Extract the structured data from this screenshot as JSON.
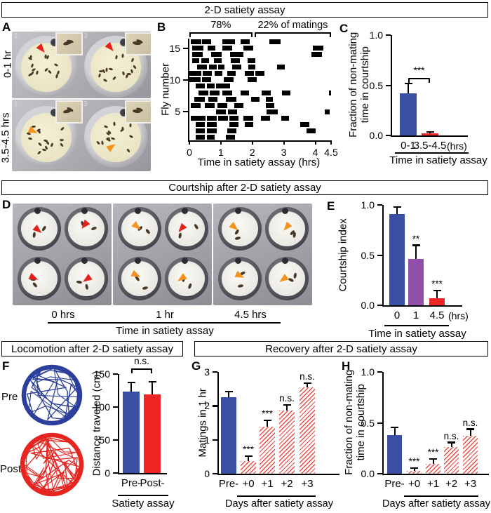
{
  "sections": {
    "top": "2-D satiety assay",
    "middle": "Courtship after 2-D satiety assay",
    "bottom_left": "Locomotion after 2-D satiety assay",
    "bottom_right": "Recovery after 2-D satiety assay"
  },
  "figure": {
    "panels": {
      "a": "A",
      "b": "B",
      "c": "C",
      "d": "D",
      "e": "E",
      "f": "F",
      "g": "G",
      "h": "H"
    }
  },
  "colors": {
    "blue": "#3a4fa4",
    "red": "#ed2524",
    "purple": "#9050a8",
    "arrow_red": "#e8201d",
    "arrow_orange": "#f6921e",
    "trace_blue": "#2b3f9b",
    "trace_red": "#e62420",
    "hatch_stripe": "#ef4b45"
  },
  "panel_a": {
    "row_labels": [
      "0-1 hr",
      "3.5-4.5 hrs"
    ],
    "arrow_colors": [
      "arrow_red",
      "arrow_orange"
    ],
    "well_digits": [
      "1",
      "3"
    ]
  },
  "panel_d": {
    "time_labels": [
      "0 hrs",
      "1 hr",
      "4.5 hrs"
    ],
    "axis_caption": "Time in satiety assay",
    "arrows": [
      [
        "arrow_red",
        "arrow_red",
        "arrow_red",
        "arrow_red"
      ],
      [
        "arrow_orange",
        "arrow_red",
        "arrow_orange",
        "arrow_orange"
      ],
      [
        "arrow_orange",
        "arrow_orange",
        "arrow_orange",
        "arrow_orange"
      ]
    ]
  },
  "panel_f": {
    "trace_labels": [
      "Pre",
      "Post"
    ]
  },
  "chart_data": [
    {
      "id": "B",
      "type": "raster",
      "ylabel": "Fly number",
      "xlabel": "Time in satiety assay (hrs)",
      "xlim": [
        0,
        4.5
      ],
      "xticks": [
        "0",
        "1",
        "2",
        "3",
        "4",
        "4.5"
      ],
      "yticks": [
        "5",
        "10",
        "15"
      ],
      "n_flies": 16,
      "brackets": [
        {
          "label": "78%",
          "range": [
            0,
            2.0
          ]
        },
        {
          "label": "22% of matings",
          "range": [
            2.07,
            4.5
          ]
        }
      ],
      "flies": [
        [
          [
            0.2,
            0.48
          ],
          [
            0.55,
            0.8
          ],
          [
            1.15,
            1.45
          ]
        ],
        [
          [
            0.2,
            0.5
          ],
          [
            0.56,
            0.86
          ],
          [
            1.2,
            1.5
          ],
          [
            3.72,
            4.02
          ]
        ],
        [
          [
            0.2,
            0.5
          ],
          [
            0.56,
            0.86
          ],
          [
            1.26,
            1.56
          ],
          [
            1.76,
            2.02
          ],
          [
            3.52,
            3.82
          ]
        ],
        [
          [
            0.05,
            0.52
          ],
          [
            0.56,
            0.86
          ],
          [
            0.92,
            1.22
          ],
          [
            1.26,
            1.56
          ],
          [
            1.72,
            2.02
          ],
          [
            2.28,
            2.56
          ],
          [
            2.92,
            3.16
          ]
        ],
        [
          [
            0.85,
            1.15
          ],
          [
            1.22,
            1.52
          ],
          [
            2.45,
            2.8
          ],
          [
            4.3,
            4.45
          ]
        ],
        [
          [
            0.05,
            0.35
          ],
          [
            0.5,
            0.8
          ],
          [
            0.9,
            1.2
          ],
          [
            1.42,
            1.72
          ],
          [
            2.42,
            2.7
          ]
        ],
        [
          [
            0.15,
            0.5
          ],
          [
            0.6,
            0.9
          ],
          [
            1.15,
            1.5
          ],
          [
            1.95,
            2.22
          ],
          [
            2.42,
            2.66
          ]
        ],
        [
          [
            0.3,
            0.6
          ],
          [
            0.65,
            0.95
          ],
          [
            1.05,
            1.35
          ],
          [
            1.62,
            1.9
          ],
          [
            2.3,
            2.58
          ],
          [
            2.95,
            3.2
          ],
          [
            4.44,
            4.5
          ]
        ],
        [
          [
            0.2,
            0.5
          ],
          [
            0.55,
            0.8
          ],
          [
            0.85,
            1.3
          ]
        ],
        [
          [
            0.0,
            0.35
          ],
          [
            0.4,
            0.7
          ],
          [
            1.1,
            1.4
          ],
          [
            1.85,
            2.15
          ]
        ],
        [
          [
            0.0,
            0.38
          ],
          [
            0.42,
            0.72
          ],
          [
            0.8,
            1.05
          ],
          [
            1.2,
            1.48
          ],
          [
            1.75,
            2.05
          ],
          [
            2.1,
            2.38
          ]
        ],
        [
          [
            0.25,
            0.55
          ],
          [
            0.62,
            0.86
          ],
          [
            0.92,
            1.12
          ],
          [
            1.35,
            1.65
          ],
          [
            1.88,
            2.1
          ],
          [
            2.78,
            3.02
          ]
        ],
        [
          [
            0.1,
            0.32
          ],
          [
            0.38,
            0.62
          ],
          [
            0.78,
            1.02
          ],
          [
            1.32,
            1.6
          ],
          [
            1.85,
            2.1
          ]
        ],
        [
          [
            0.1,
            0.42
          ],
          [
            0.7,
            1.02
          ],
          [
            1.3,
            1.72
          ],
          [
            3.88,
            4.2
          ]
        ],
        [
          [
            0.08,
            0.45
          ],
          [
            0.58,
            0.83
          ],
          [
            1.05,
            1.35
          ],
          [
            1.72,
            2.02
          ],
          [
            3.92,
            4.25
          ]
        ],
        [
          [
            0.05,
            0.38
          ],
          [
            0.4,
            0.7
          ],
          [
            1.05,
            1.45
          ],
          [
            1.62,
            1.92
          ],
          [
            2.55,
            2.9
          ]
        ]
      ]
    },
    {
      "id": "C",
      "type": "bar",
      "ylabel_lines": [
        "Fraction of non-mating",
        "time in courtship"
      ],
      "xlabel": "Time in satiety assay",
      "ylim": [
        0,
        1
      ],
      "yticks": [
        "0.0",
        "0.5",
        "1.0"
      ],
      "categories": [
        "0-1",
        "3.5-4.5"
      ],
      "unit": "(hrs)",
      "values": [
        0.42,
        0.02
      ],
      "errors": [
        0.09,
        0.01
      ],
      "bar_colors": [
        "blue",
        "red"
      ],
      "styles": [
        "solid",
        "solid"
      ],
      "sig": [
        "",
        ""
      ],
      "bracket": {
        "from": 0,
        "to": 1,
        "label": "***"
      }
    },
    {
      "id": "E",
      "type": "bar",
      "ylabel": "Courtship index",
      "xlabel": "Time in satiety assay",
      "ylim": [
        0,
        1
      ],
      "yticks": [
        "0.0",
        "0.5",
        "1.0"
      ],
      "categories": [
        "0",
        "1",
        "4.5"
      ],
      "unit": "(hrs)",
      "values": [
        0.91,
        0.46,
        0.07
      ],
      "errors": [
        0.06,
        0.13,
        0.07
      ],
      "bar_colors": [
        "blue",
        "purple",
        "red"
      ],
      "styles": [
        "solid",
        "solid",
        "solid"
      ],
      "sig": [
        "",
        "**",
        "***"
      ]
    },
    {
      "id": "F",
      "type": "bar",
      "ylabel": "Distance traveled (cm)",
      "xlabel": "Satiety assay",
      "ylim": [
        0,
        150
      ],
      "yticks": [
        "0",
        "50",
        "100",
        "150"
      ],
      "categories": [
        "Pre-",
        "Post-"
      ],
      "values": [
        123,
        119
      ],
      "errors": [
        13,
        18
      ],
      "bar_colors": [
        "blue",
        "red"
      ],
      "styles": [
        "solid",
        "solid"
      ],
      "sig": [
        "",
        ""
      ],
      "bracket": {
        "from": 0,
        "to": 1,
        "label": "n.s."
      }
    },
    {
      "id": "G",
      "type": "bar",
      "ylabel": "Matings in 1 hr",
      "xlabel": "Days after satiety assay",
      "ylim": [
        0,
        3
      ],
      "yticks": [
        "0",
        "1",
        "2",
        "3"
      ],
      "categories": [
        "Pre-",
        "+0",
        "+1",
        "+2",
        "+3"
      ],
      "values": [
        2.25,
        0.37,
        1.38,
        1.87,
        2.55
      ],
      "errors": [
        0.15,
        0.13,
        0.17,
        0.14,
        0.1
      ],
      "bar_colors": [
        "blue",
        "red",
        "red",
        "red",
        "red"
      ],
      "styles": [
        "solid",
        "hatch",
        "hatch",
        "hatch",
        "hatch"
      ],
      "sig": [
        "",
        "***",
        "***",
        "n.s.",
        "n.s."
      ]
    },
    {
      "id": "H",
      "type": "bar",
      "ylabel_lines": [
        "Fraction of non-mating",
        "time in courtship"
      ],
      "xlabel": "Days after satiety assay",
      "ylim": [
        0,
        1
      ],
      "yticks": [
        "0.0",
        "0.5",
        "1.0"
      ],
      "categories": [
        "Pre-",
        "+0",
        "+1",
        "+2",
        "+3"
      ],
      "values": [
        0.38,
        0.03,
        0.1,
        0.26,
        0.37
      ],
      "errors": [
        0.07,
        0.02,
        0.04,
        0.04,
        0.06
      ],
      "bar_colors": [
        "blue",
        "red",
        "red",
        "red",
        "red"
      ],
      "styles": [
        "solid",
        "hatch",
        "hatch",
        "hatch",
        "hatch"
      ],
      "sig": [
        "",
        "***",
        "***",
        "n.s.",
        "n.s."
      ]
    }
  ]
}
